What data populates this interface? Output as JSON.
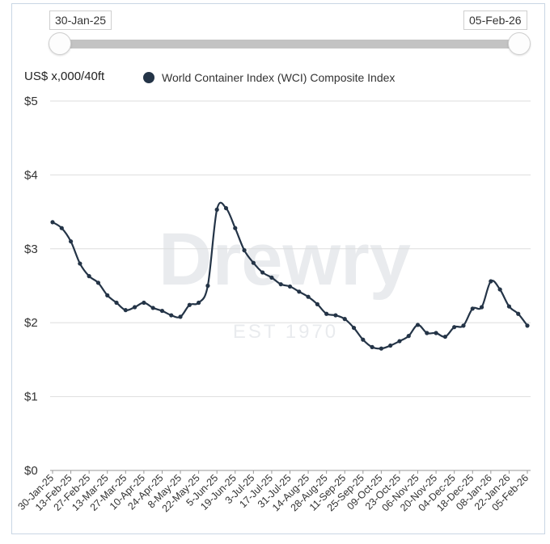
{
  "range_selector": {
    "start_label": "30-Jan-25",
    "end_label": "05-Feb-26"
  },
  "watermark": {
    "brand": "Drewry",
    "tagline": "EST 1970"
  },
  "chart_data": {
    "type": "line",
    "title": "",
    "ylabel": "US$ x,000/40ft",
    "xlabel": "",
    "ylim": [
      0,
      5
    ],
    "yticks": [
      {
        "value": 0,
        "label": "$0"
      },
      {
        "value": 1,
        "label": "$1"
      },
      {
        "value": 2,
        "label": "$2"
      },
      {
        "value": 3,
        "label": "$3"
      },
      {
        "value": 4,
        "label": "$4"
      },
      {
        "value": 5,
        "label": "$5"
      }
    ],
    "grid": true,
    "legend_position": "top-left",
    "x_tick_labels": [
      "30-Jan-25",
      "13-Feb-25",
      "27-Feb-25",
      "13-Mar-25",
      "27-Mar-25",
      "10-Apr-25",
      "24-Apr-25",
      "8-May-25",
      "22-May-25",
      "5-Jun-25",
      "19-Jun-25",
      "3-Jul-25",
      "17-Jul-25",
      "31-Jul-25",
      "14-Aug-25",
      "28-Aug-25",
      "11-Sep-25",
      "25-Sep-25",
      "09-Oct-25",
      "23-Oct-25",
      "06-Nov-25",
      "20-Nov-25",
      "04-Dec-25",
      "18-Dec-25",
      "08-Jan-26",
      "22-Jan-26",
      "05-Feb-26"
    ],
    "series": [
      {
        "name": "World Container Index (WCI) Composite Index",
        "color": "#243447",
        "values": [
          3.36,
          3.28,
          3.1,
          2.8,
          2.63,
          2.54,
          2.37,
          2.27,
          2.17,
          2.21,
          2.27,
          2.2,
          2.16,
          2.1,
          2.08,
          2.24,
          2.27,
          2.5,
          3.53,
          3.55,
          3.28,
          2.98,
          2.81,
          2.68,
          2.61,
          2.52,
          2.49,
          2.42,
          2.35,
          2.25,
          2.12,
          2.1,
          2.05,
          1.93,
          1.77,
          1.67,
          1.65,
          1.69,
          1.75,
          1.82,
          1.97,
          1.86,
          1.86,
          1.81,
          1.94,
          1.96,
          2.19,
          2.21,
          2.56,
          2.45,
          2.22,
          2.12,
          1.96
        ]
      }
    ]
  }
}
